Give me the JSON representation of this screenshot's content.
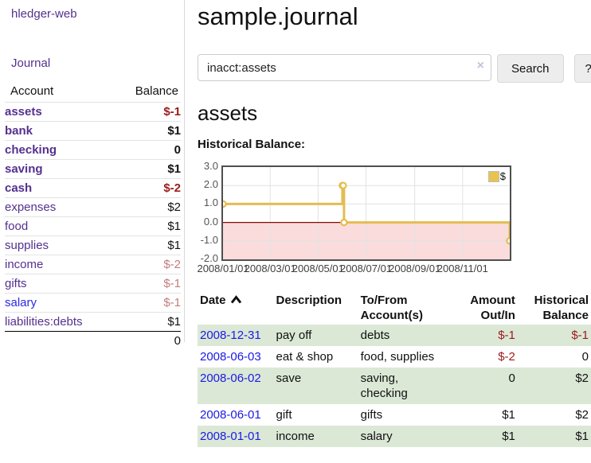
{
  "colors": {
    "link_purple": "#54308f",
    "link_blue": "#2a2ae0",
    "date_blue": "#1a1ae6",
    "negative_bold_red": "#9d1a1a",
    "negative_light_red": "#c17d7d",
    "row_green": "#dbe8d6",
    "chart_line_gold": "#e4bd50",
    "chart_negative_pink": "#fadcdc",
    "chart_zero_red": "#8c0606"
  },
  "sidebar": {
    "app_title": "hledger-web",
    "journal_link": "Journal",
    "accounts_table": {
      "headers": [
        "Account",
        "Balance"
      ],
      "rows": [
        {
          "name": "assets",
          "balance": "$-1",
          "level": 1,
          "bold": true,
          "balance_style": "neg"
        },
        {
          "name": "bank",
          "balance": "$1",
          "level": 2,
          "bold": true,
          "balance_style": "pos"
        },
        {
          "name": "checking",
          "balance": "0",
          "level": 3,
          "bold": true,
          "balance_style": "pos"
        },
        {
          "name": "saving",
          "balance": "$1",
          "level": 3,
          "bold": true,
          "balance_style": "pos"
        },
        {
          "name": "cash",
          "balance": "$-2",
          "level": 2,
          "bold": true,
          "balance_style": "neg"
        },
        {
          "name": "expenses",
          "balance": "$2",
          "level": 1,
          "bold": false,
          "balance_style": "pos"
        },
        {
          "name": "food",
          "balance": "$1",
          "level": 2,
          "bold": false,
          "balance_style": "pos"
        },
        {
          "name": "supplies",
          "balance": "$1",
          "level": 2,
          "bold": false,
          "balance_style": "pos"
        },
        {
          "name": "income",
          "balance": "$-2",
          "level": 1,
          "bold": false,
          "balance_style": "neg-light"
        },
        {
          "name": "gifts",
          "balance": "$-1",
          "level": 2,
          "bold": false,
          "balance_style": "neg-light"
        },
        {
          "name": "salary",
          "balance": "$-1",
          "level": 2,
          "bold": false,
          "balance_style": "neg-light",
          "link_style": "blue"
        },
        {
          "name": "liabilities:debts",
          "balance": "$1",
          "level": 1,
          "bold": false,
          "balance_style": "pos"
        }
      ],
      "total": "0"
    }
  },
  "header": {
    "title": "sample.journal"
  },
  "search": {
    "value": "inacct:assets",
    "clear_icon": "×",
    "button_label": "Search",
    "help_label": "?"
  },
  "account_page": {
    "heading": "assets",
    "chart_title": "Historical Balance:"
  },
  "chart_data": {
    "type": "line",
    "step": true,
    "title": "Historical Balance:",
    "series": [
      {
        "name": "$",
        "points": [
          [
            "2008-01-01",
            1
          ],
          [
            "2008-06-01",
            2
          ],
          [
            "2008-06-02",
            2
          ],
          [
            "2008-06-03",
            0
          ],
          [
            "2008-12-31",
            -1
          ]
        ]
      }
    ],
    "xlim": [
      "2008-01-01",
      "2008-12-31"
    ],
    "ylim": [
      -2,
      3
    ],
    "yticks": [
      {
        "value": 3,
        "label": "3.0"
      },
      {
        "value": 2,
        "label": "2.0"
      },
      {
        "value": 1,
        "label": "1.0"
      },
      {
        "value": 0,
        "label": "0.0"
      },
      {
        "value": -1,
        "label": "-1.0"
      },
      {
        "value": -2,
        "label": "-2.0"
      }
    ],
    "xticks": [
      {
        "date": "2008-01-01",
        "label": "2008/01/01"
      },
      {
        "date": "2008-03-01",
        "label": "2008/03/01"
      },
      {
        "date": "2008-05-01",
        "label": "2008/05/01"
      },
      {
        "date": "2008-07-01",
        "label": "2008/07/01"
      },
      {
        "date": "2008-09-01",
        "label": "2008/09/01"
      },
      {
        "date": "2008-11-01",
        "label": "2008/11/01"
      }
    ],
    "grid": true,
    "legend": {
      "label": "$",
      "position": "top-right"
    }
  },
  "register_table": {
    "headers": {
      "date": "Date",
      "description": "Description",
      "accounts": "To/From Account(s)",
      "amount": "Amount Out/In",
      "balance": "Historical Balance"
    },
    "rows": [
      {
        "date": "2008-12-31",
        "description": "pay off",
        "accounts": "debts",
        "amount": "$-1",
        "amount_style": "neg",
        "balance": "$-1",
        "balance_style": "neg",
        "shaded": true
      },
      {
        "date": "2008-06-03",
        "description": "eat & shop",
        "accounts": "food, supplies",
        "amount": "$-2",
        "amount_style": "neg",
        "balance": "0",
        "balance_style": "pos",
        "shaded": false
      },
      {
        "date": "2008-06-02",
        "description": "save",
        "accounts": "saving, checking",
        "amount": "0",
        "amount_style": "pos",
        "balance": "$2",
        "balance_style": "pos",
        "shaded": true
      },
      {
        "date": "2008-06-01",
        "description": "gift",
        "accounts": "gifts",
        "amount": "$1",
        "amount_style": "pos",
        "balance": "$2",
        "balance_style": "pos",
        "shaded": false
      },
      {
        "date": "2008-01-01",
        "description": "income",
        "accounts": "salary",
        "amount": "$1",
        "amount_style": "pos",
        "balance": "$1",
        "balance_style": "pos",
        "shaded": true
      }
    ]
  }
}
